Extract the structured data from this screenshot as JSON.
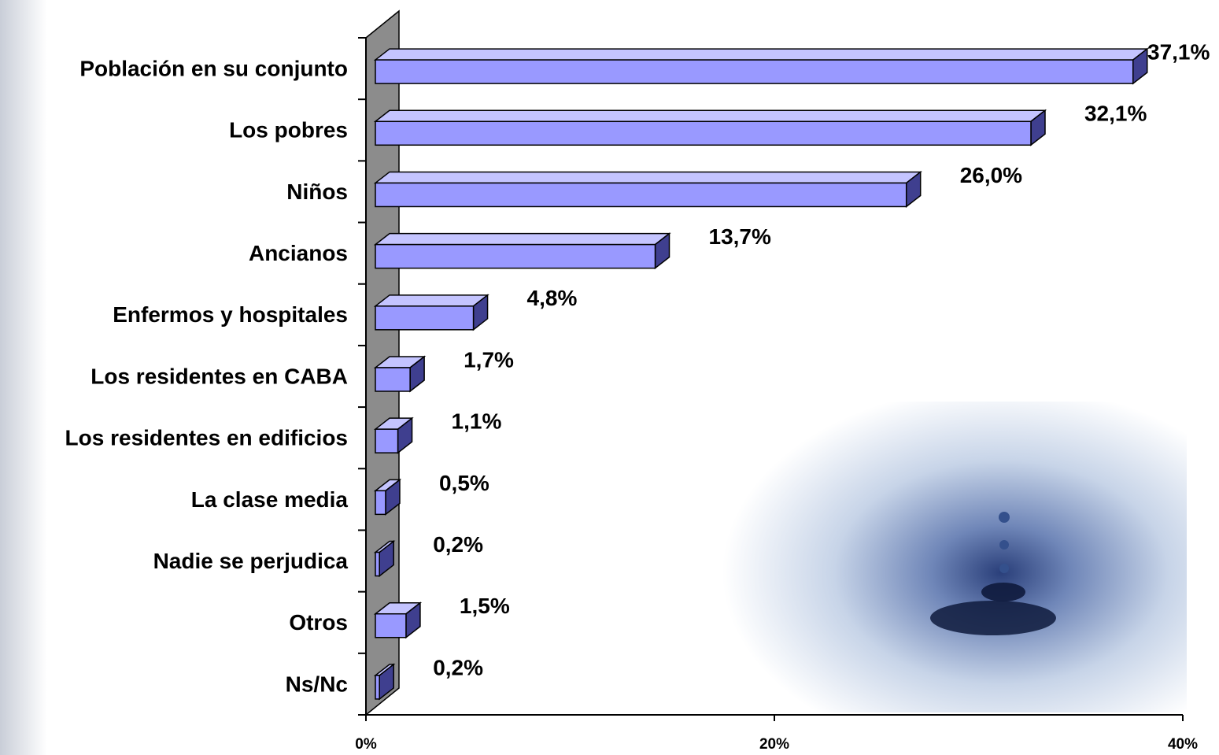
{
  "chart_data": {
    "type": "bar3d_horizontal",
    "categories": [
      "Población en su conjunto",
      "Los pobres",
      "Niños",
      "Ancianos",
      "Enfermos y hospitales",
      "Los residentes en CABA",
      "Los residentes en edificios",
      "La clase media",
      "Nadie se perjudica",
      "Otros",
      "Ns/Nc"
    ],
    "values": [
      37.1,
      32.1,
      26.0,
      13.7,
      4.8,
      1.7,
      1.1,
      0.5,
      0.2,
      1.5,
      0.2
    ],
    "value_labels": [
      "37,1%",
      "32,1%",
      "26,0%",
      "13,7%",
      "4,8%",
      "1,7%",
      "1,1%",
      "0,5%",
      "0,2%",
      "1,5%",
      "0,2%"
    ],
    "color": "#9999ff",
    "xlim": [
      0,
      40
    ],
    "xticks": [
      {
        "value": 0,
        "label": "0%"
      },
      {
        "value": 20,
        "label": "20%"
      },
      {
        "value": 40,
        "label": "40%"
      }
    ]
  }
}
